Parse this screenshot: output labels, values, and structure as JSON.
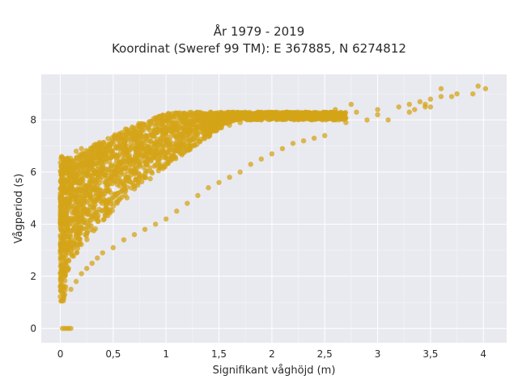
{
  "chart_data": {
    "type": "scatter",
    "title": [
      "År 1979 - 2019",
      "Koordinat (Sweref 99 TM): E 367885, N 6274812"
    ],
    "xlabel": "Signifikant våghöjd (m)",
    "ylabel": "Vågperiod (s)",
    "xlim": [
      -0.18,
      4.22
    ],
    "ylim": [
      -0.55,
      9.75
    ],
    "x_ticks": [
      0,
      0.5,
      1,
      1.5,
      2,
      2.5,
      3,
      3.5,
      4
    ],
    "x_tick_labels": [
      "0",
      "0,5",
      "1",
      "1,5",
      "2",
      "2,5",
      "3",
      "3,5",
      "4"
    ],
    "y_ticks": [
      0,
      2,
      4,
      6,
      8
    ],
    "y_tick_labels": [
      "0",
      "2",
      "4",
      "6",
      "8"
    ],
    "grid": true,
    "background": "#e9e9f0",
    "marker_color": "#d4a418",
    "series": [
      {
        "values_note": "",
        "points": [
          [
            0.02,
            0
          ],
          [
            0.04,
            0
          ],
          [
            0.06,
            0
          ],
          [
            0.08,
            0
          ],
          [
            0.1,
            0
          ],
          [
            0.02,
            1.1
          ],
          [
            0.03,
            1.3
          ],
          [
            0.05,
            1.6
          ],
          [
            0.04,
            2.0
          ],
          [
            0.06,
            2.4
          ],
          [
            0.05,
            2.8
          ],
          [
            0.07,
            3.3
          ],
          [
            0.06,
            3.7
          ],
          [
            0.08,
            4.2
          ],
          [
            0.07,
            4.7
          ],
          [
            0.08,
            5.2
          ],
          [
            0.09,
            5.6
          ],
          [
            0.1,
            6.0
          ],
          [
            0.12,
            6.4
          ],
          [
            0.15,
            6.8
          ],
          [
            0.2,
            6.9
          ],
          [
            0.25,
            6.7
          ],
          [
            0.1,
            1.5
          ],
          [
            0.15,
            1.8
          ],
          [
            0.2,
            2.1
          ],
          [
            0.25,
            2.3
          ],
          [
            0.3,
            2.5
          ],
          [
            0.35,
            2.7
          ],
          [
            0.4,
            2.9
          ],
          [
            0.5,
            3.1
          ],
          [
            0.6,
            3.4
          ],
          [
            0.7,
            3.6
          ],
          [
            0.8,
            3.8
          ],
          [
            0.9,
            4.0
          ],
          [
            1.0,
            4.2
          ],
          [
            1.1,
            4.5
          ],
          [
            1.2,
            4.8
          ],
          [
            1.3,
            5.1
          ],
          [
            1.4,
            5.4
          ],
          [
            1.5,
            5.6
          ],
          [
            1.6,
            5.8
          ],
          [
            1.7,
            6.0
          ],
          [
            1.8,
            6.3
          ],
          [
            1.9,
            6.5
          ],
          [
            2.0,
            6.7
          ],
          [
            2.1,
            6.9
          ],
          [
            2.2,
            7.1
          ],
          [
            2.3,
            7.2
          ],
          [
            2.4,
            7.3
          ],
          [
            2.5,
            7.4
          ],
          [
            0.2,
            6.3
          ],
          [
            0.3,
            6.5
          ],
          [
            0.4,
            6.6
          ],
          [
            0.5,
            6.7
          ],
          [
            0.6,
            6.8
          ],
          [
            0.7,
            6.9
          ],
          [
            0.8,
            7.0
          ],
          [
            0.9,
            7.1
          ],
          [
            1.0,
            7.2
          ],
          [
            1.1,
            7.3
          ],
          [
            1.2,
            7.4
          ],
          [
            1.3,
            7.5
          ],
          [
            1.4,
            7.6
          ],
          [
            1.5,
            7.7
          ],
          [
            1.6,
            7.8
          ],
          [
            1.7,
            7.9
          ],
          [
            1.8,
            8.0
          ],
          [
            1.9,
            8.0
          ],
          [
            2.0,
            8.1
          ],
          [
            2.2,
            8.2
          ],
          [
            2.4,
            8.2
          ],
          [
            2.6,
            8.1
          ],
          [
            2.8,
            8.3
          ],
          [
            3.0,
            8.4
          ],
          [
            3.2,
            8.5
          ],
          [
            3.4,
            8.7
          ],
          [
            3.5,
            8.8
          ],
          [
            3.6,
            8.9
          ],
          [
            3.7,
            8.9
          ],
          [
            3.6,
            9.2
          ],
          [
            3.75,
            9.0
          ],
          [
            3.95,
            9.3
          ],
          [
            4.02,
            9.2
          ],
          [
            3.9,
            9.0
          ],
          [
            3.0,
            8.2
          ],
          [
            3.1,
            8.0
          ],
          [
            3.3,
            8.3
          ],
          [
            3.45,
            8.5
          ],
          [
            2.7,
            7.9
          ],
          [
            2.9,
            8.0
          ],
          [
            3.3,
            8.6
          ],
          [
            3.45,
            8.6
          ],
          [
            3.5,
            8.5
          ],
          [
            3.35,
            8.4
          ],
          [
            2.75,
            8.6
          ],
          [
            2.6,
            8.4
          ]
        ]
      }
    ]
  }
}
